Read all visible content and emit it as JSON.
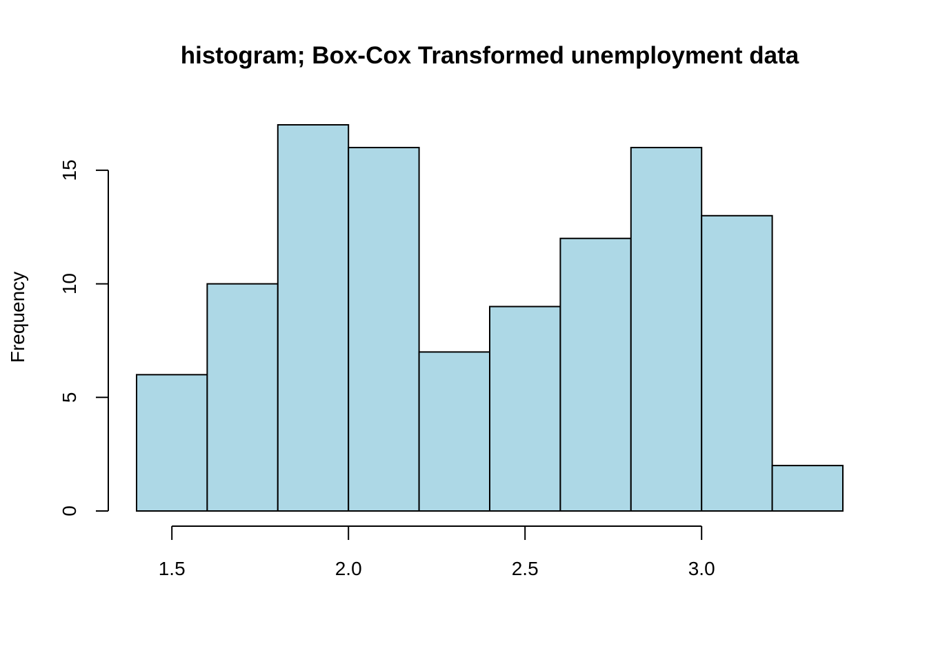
{
  "chart_data": {
    "type": "bar",
    "subtype": "histogram",
    "title": "histogram; Box-Cox Transformed unemployment data",
    "xlabel": "",
    "ylabel": "Frequency",
    "bin_edges": [
      1.4,
      1.6,
      1.8,
      2.0,
      2.2,
      2.4,
      2.6,
      2.8,
      3.0,
      3.2,
      3.4
    ],
    "values": [
      6,
      10,
      17,
      16,
      7,
      9,
      12,
      16,
      13,
      2
    ],
    "x_ticks": [
      1.5,
      2.0,
      2.5,
      3.0
    ],
    "x_tick_labels": [
      "1.5",
      "2.0",
      "2.5",
      "3.0"
    ],
    "y_ticks": [
      0,
      5,
      10,
      15
    ],
    "y_tick_labels": [
      "0",
      "5",
      "10",
      "15"
    ],
    "xlim": [
      1.4,
      3.4
    ],
    "ylim": [
      0,
      17
    ],
    "grid": false,
    "bar_color": "#add8e6",
    "edge_color": "#000000"
  }
}
